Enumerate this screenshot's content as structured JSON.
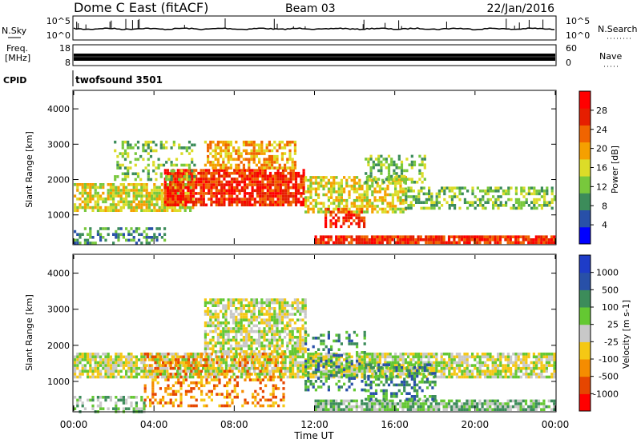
{
  "header": {
    "title": "Dome C East (fitACF)",
    "beam": "Beam 03",
    "date": "22/Jan/2016"
  },
  "top_panels": {
    "nsky_label": "N.Sky",
    "nsky_ticks": [
      "10^5",
      "10^0"
    ],
    "nsearch_label": "N.Search",
    "nsearch_ticks": [
      "10^5",
      "10^0"
    ],
    "freq_label_1": "Freq.",
    "freq_label_2": "[MHz]",
    "freq_ticks": [
      "18",
      "8"
    ],
    "nave_label": "Nave",
    "nave_ticks": [
      "60",
      "0"
    ],
    "cpid_label": "CPID",
    "cpid_value": "twofsound 3501"
  },
  "chart_data": [
    {
      "type": "heatmap",
      "name": "power",
      "ylabel": "Slant Range [km]",
      "xlabel": "Time UT",
      "xticks": [
        "00:00",
        "04:00",
        "08:00",
        "12:00",
        "16:00",
        "20:00",
        "00:00"
      ],
      "yticks": [
        "1000",
        "2000",
        "3000",
        "4000"
      ],
      "ylim": [
        180,
        4500
      ],
      "xlim_hours": [
        0,
        24
      ],
      "colorbar_label": "Power [dB]",
      "colorbar_ticks": [
        "28",
        "24",
        "20",
        "16",
        "12",
        "8",
        "4"
      ],
      "colors": [
        "#0000ff",
        "#2850a8",
        "#3c8c5a",
        "#78c83c",
        "#dcdc28",
        "#f5a000",
        "#f06400",
        "#e61e00",
        "#ff0000"
      ],
      "regions": [
        {
          "t0": 0.0,
          "t1": 6.0,
          "r0": 1150,
          "r1": 1900,
          "level": 4,
          "density": 0.75
        },
        {
          "t0": 4.5,
          "t1": 11.5,
          "r0": 1300,
          "r1": 2300,
          "level": 7,
          "density": 0.85
        },
        {
          "t0": 6.5,
          "t1": 11.0,
          "r0": 2300,
          "r1": 3100,
          "level": 5,
          "density": 0.6
        },
        {
          "t0": 2.0,
          "t1": 6.0,
          "r0": 2000,
          "r1": 3100,
          "level": 3,
          "density": 0.35
        },
        {
          "t0": 11.5,
          "t1": 16.5,
          "r0": 1100,
          "r1": 2100,
          "level": 4,
          "density": 0.6
        },
        {
          "t0": 12.5,
          "t1": 14.5,
          "r0": 700,
          "r1": 1200,
          "level": 7,
          "density": 0.6
        },
        {
          "t0": 12.0,
          "t1": 24.0,
          "r0": 200,
          "r1": 420,
          "level": 7,
          "density": 0.85
        },
        {
          "t0": 0.0,
          "t1": 4.5,
          "r0": 200,
          "r1": 650,
          "level": 2,
          "density": 0.5
        },
        {
          "t0": 16.5,
          "t1": 24.0,
          "r0": 1150,
          "r1": 1800,
          "level": 3,
          "density": 0.55
        },
        {
          "t0": 14.5,
          "t1": 17.5,
          "r0": 1900,
          "r1": 2700,
          "level": 3,
          "density": 0.45
        }
      ]
    },
    {
      "type": "heatmap",
      "name": "velocity",
      "ylabel": "Slant Range [km]",
      "xlabel": "Time UT",
      "xticks": [
        "00:00",
        "04:00",
        "08:00",
        "12:00",
        "16:00",
        "20:00",
        "00:00"
      ],
      "yticks": [
        "1000",
        "2000",
        "3000",
        "4000"
      ],
      "ylim": [
        180,
        4500
      ],
      "xlim_hours": [
        0,
        24
      ],
      "colorbar_label": "Velocity [m s-1]",
      "colorbar_ticks": [
        "1000",
        "500",
        "100",
        "25",
        "-25",
        "-100",
        "-500",
        "-1000"
      ],
      "colors": [
        "#ff0000",
        "#e64600",
        "#f58c00",
        "#f5c814",
        "#c8c8c8",
        "#64c832",
        "#3c8c5a",
        "#2850a8",
        "#1e3cc8"
      ],
      "regions": [
        {
          "t0": 0.0,
          "t1": 24.0,
          "r0": 1150,
          "r1": 1800,
          "level": 4,
          "density": 0.8
        },
        {
          "t0": 6.5,
          "t1": 11.5,
          "r0": 1800,
          "r1": 3300,
          "level": 4,
          "density": 0.7
        },
        {
          "t0": 3.5,
          "t1": 10.5,
          "r0": 300,
          "r1": 1800,
          "level": 2,
          "density": 0.35
        },
        {
          "t0": 12.0,
          "t1": 24.0,
          "r0": 200,
          "r1": 500,
          "level": 5,
          "density": 0.8
        },
        {
          "t0": 14.5,
          "t1": 18.0,
          "r0": 500,
          "r1": 1500,
          "level": 6,
          "density": 0.45
        },
        {
          "t0": 0.0,
          "t1": 3.5,
          "r0": 200,
          "r1": 600,
          "level": 5,
          "density": 0.45
        },
        {
          "t0": 11.5,
          "t1": 14.5,
          "r0": 800,
          "r1": 2400,
          "level": 6,
          "density": 0.35
        }
      ]
    }
  ],
  "colors": {
    "nsky_line": "#000000",
    "frame": "#000000"
  }
}
